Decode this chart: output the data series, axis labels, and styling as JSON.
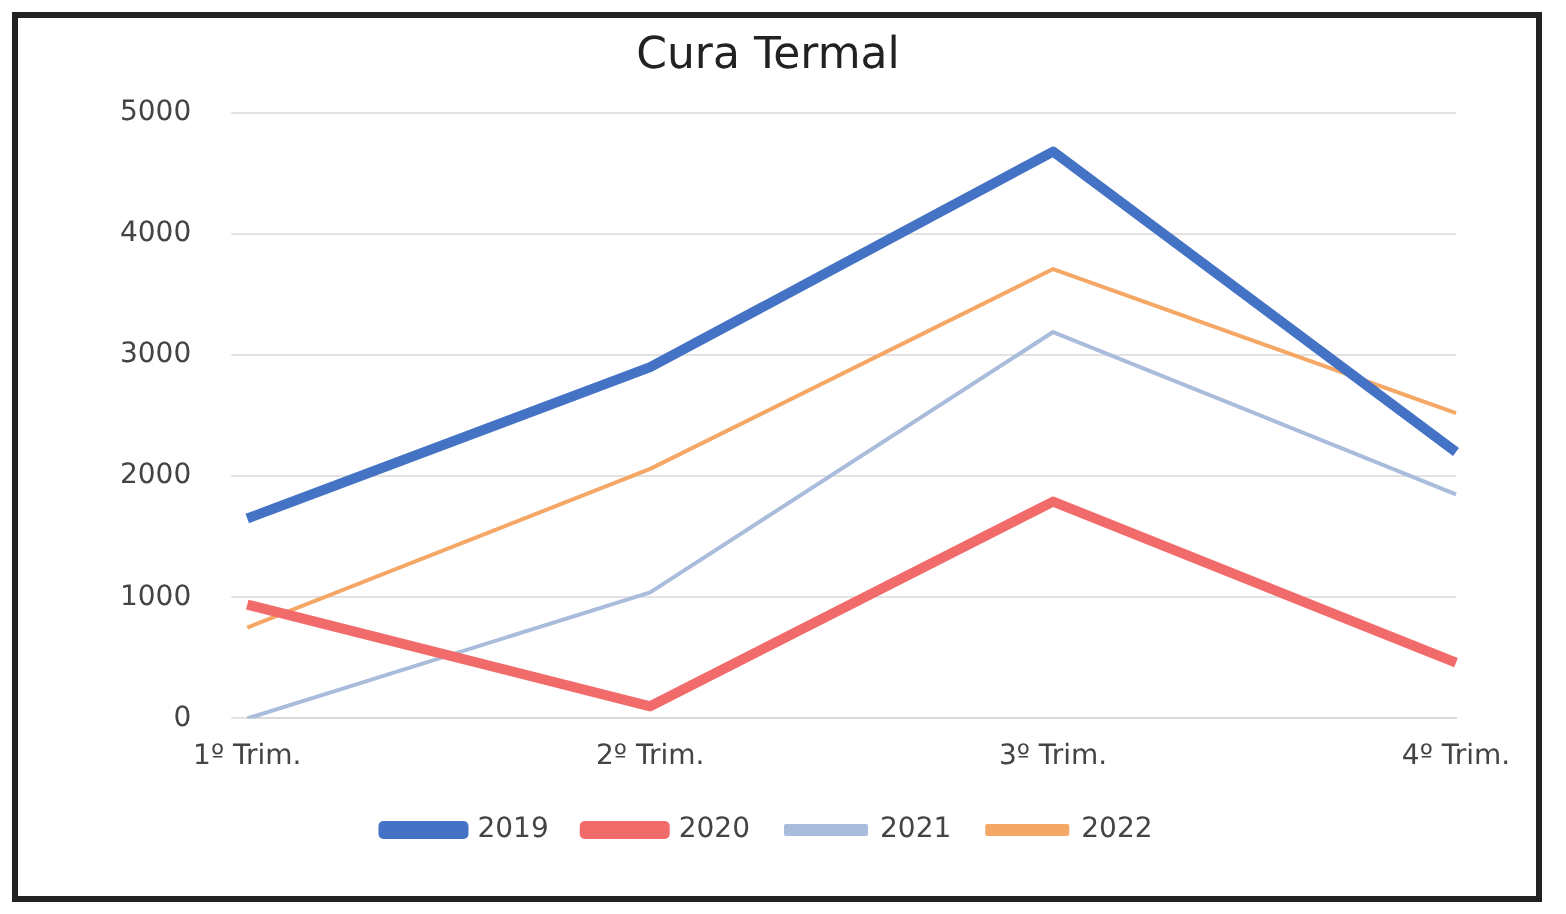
{
  "chart_data": {
    "type": "line",
    "title": "Cura Termal",
    "categories": [
      "1º Trim.",
      "2º Trim.",
      "3º Trim.",
      "4º Trim."
    ],
    "series": [
      {
        "name": "2019",
        "color": "#4472c4",
        "values": [
          1650,
          2900,
          4680,
          2200
        ]
      },
      {
        "name": "2020",
        "color": "#f26b6b",
        "values": [
          940,
          100,
          1790,
          460
        ]
      },
      {
        "name": "2021",
        "color": "#a9bcdc",
        "values": [
          0,
          1040,
          3190,
          1850
        ]
      },
      {
        "name": "2022",
        "color": "#f5a765",
        "values": [
          750,
          2060,
          3710,
          2520
        ]
      }
    ],
    "ylim": [
      0,
      5000
    ],
    "yticks": [
      0,
      1000,
      2000,
      3000,
      4000,
      5000
    ],
    "grid": "y",
    "legend": "bottom",
    "marker": "none",
    "line_style": "solid"
  }
}
